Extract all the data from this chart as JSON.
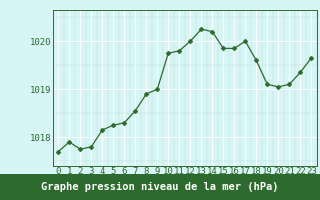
{
  "x": [
    0,
    1,
    2,
    3,
    4,
    5,
    6,
    7,
    8,
    9,
    10,
    11,
    12,
    13,
    14,
    15,
    16,
    17,
    18,
    19,
    20,
    21,
    22,
    23
  ],
  "y": [
    1017.7,
    1017.9,
    1017.75,
    1017.8,
    1018.15,
    1018.25,
    1018.3,
    1018.55,
    1018.9,
    1019.0,
    1019.75,
    1019.8,
    1020.0,
    1020.25,
    1020.2,
    1019.85,
    1019.85,
    1020.0,
    1019.6,
    1019.1,
    1019.05,
    1019.1,
    1019.35,
    1019.65
  ],
  "line_color": "#2d6a2d",
  "marker": "D",
  "marker_size": 2.5,
  "bg_color": "#d8f5f5",
  "grid_major_color": "#ffffff",
  "grid_minor_color": "#c0e0e0",
  "xlabel": "Graphe pression niveau de la mer (hPa)",
  "xlabel_fontsize": 7.5,
  "ylabel_ticks": [
    1018,
    1019,
    1020
  ],
  "ylim": [
    1017.4,
    1020.65
  ],
  "xlim": [
    -0.5,
    23.5
  ],
  "tick_fontsize": 6.5,
  "label_bg": "#2d6a2d",
  "label_color": "#ffffff"
}
